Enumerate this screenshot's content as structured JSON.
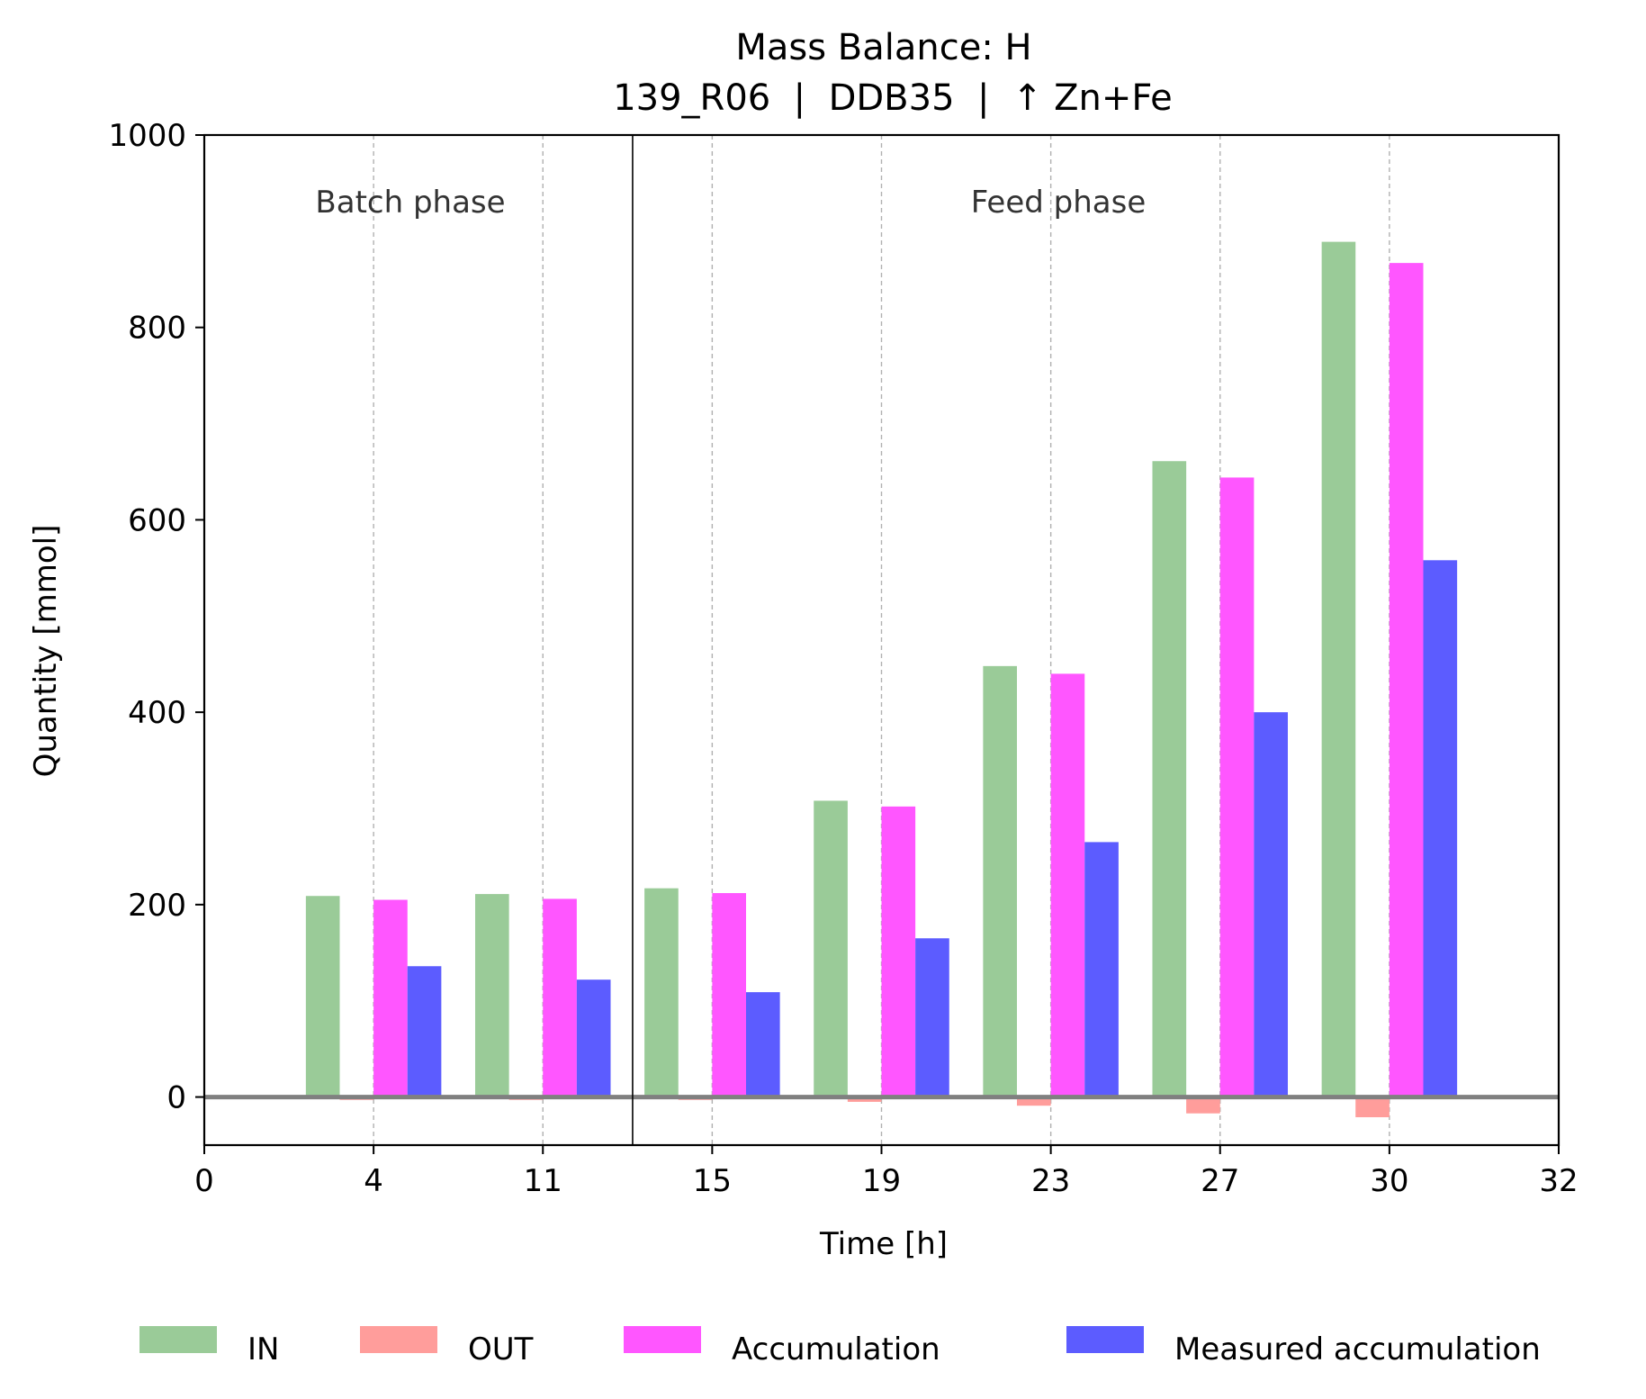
{
  "chart_data": {
    "type": "bar",
    "title": "Mass Balance: H",
    "subtitle": "139_R06  |  DDB35  |  ↑ Zn+Fe",
    "xlabel": "Time [h]",
    "ylabel": "Quantity [mmol]",
    "categories": [
      "4",
      "11",
      "15",
      "19",
      "23",
      "27",
      "30"
    ],
    "x_tick_labels": [
      "0",
      "4",
      "11",
      "15",
      "19",
      "23",
      "27",
      "30",
      "32"
    ],
    "y_ticks": [
      0,
      200,
      400,
      600,
      800,
      1000
    ],
    "ylim": [
      -50,
      1000
    ],
    "grid": "vertical dashed at category positions",
    "phase_separator_after_category": "11",
    "phases": [
      {
        "label": "Batch phase"
      },
      {
        "label": "Feed phase"
      }
    ],
    "series": [
      {
        "name": "IN",
        "color": "#9acb98",
        "values": [
          209,
          211,
          217,
          308,
          448,
          661,
          889
        ]
      },
      {
        "name": "OUT",
        "color": "#ff9d9b",
        "values": [
          -3,
          -3,
          -3,
          -5,
          -9,
          -17,
          -21
        ]
      },
      {
        "name": "Accumulation",
        "color": "#ff56ff",
        "values": [
          205,
          206,
          212,
          302,
          440,
          644,
          867
        ]
      },
      {
        "name": "Measured accumulation",
        "color": "#5c5cff",
        "values": [
          136,
          122,
          109,
          165,
          265,
          400,
          558
        ]
      }
    ],
    "legend_position": "bottom-center"
  }
}
